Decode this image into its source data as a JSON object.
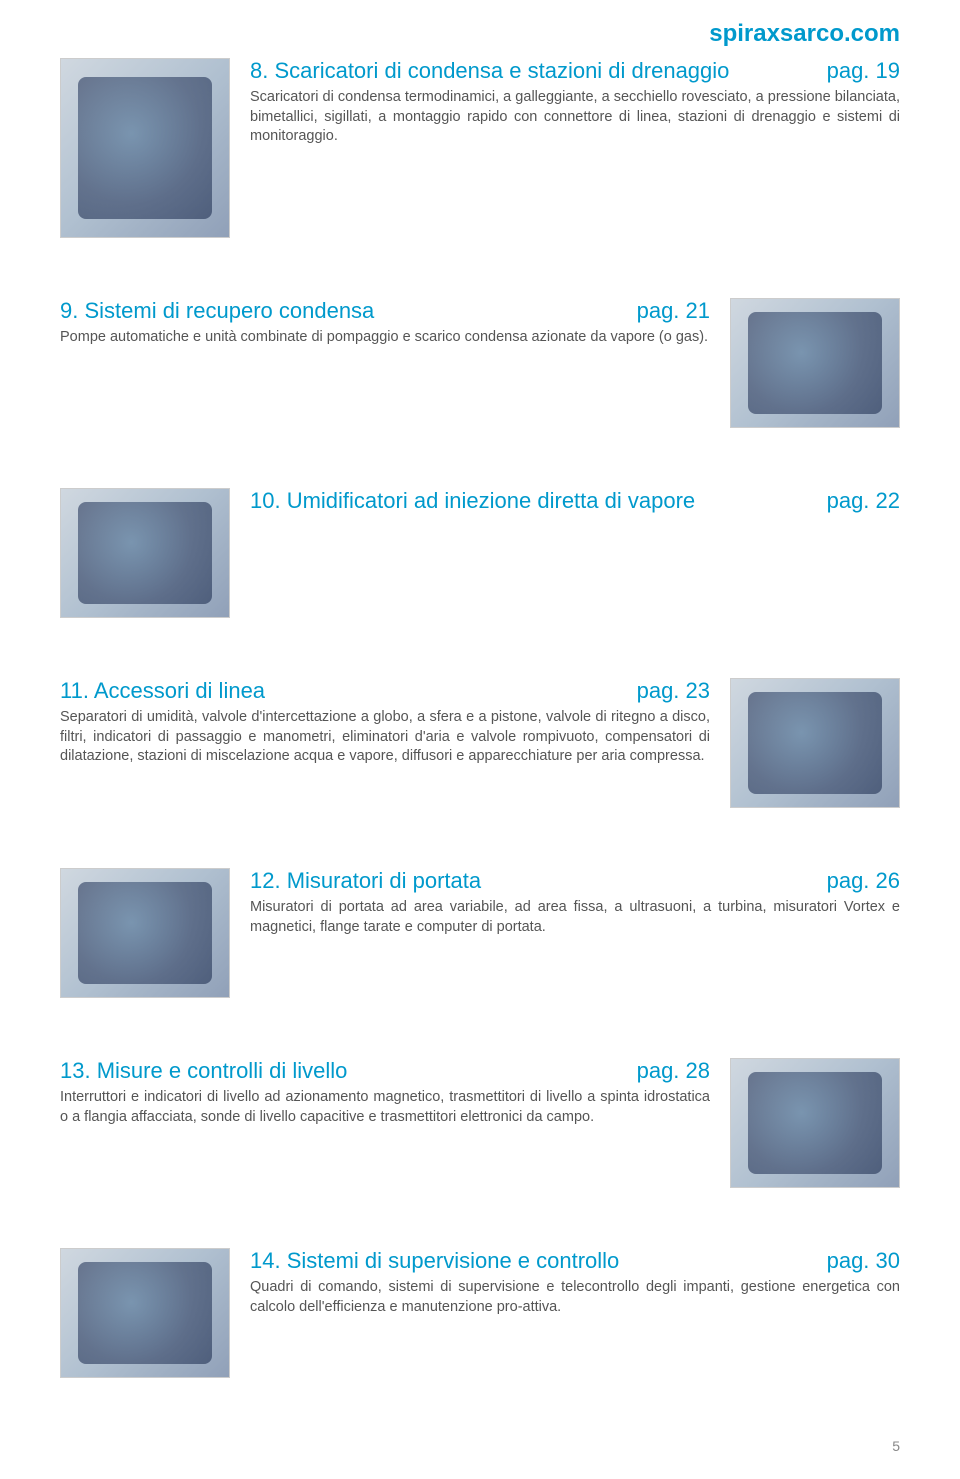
{
  "header": {
    "site": "spiraxsarco.com"
  },
  "sections": [
    {
      "num": "8.",
      "title": "Scaricatori di condensa e stazioni di drenaggio",
      "page": "pag. 19",
      "desc": "Scaricatori di condensa termodinamici, a galleggiante, a secchiello rovesciato, a pressione bilanciata, bimetallici, sigillati, a montaggio rapido con connettore di linea, stazioni di drenaggio e sistemi di monitoraggio.",
      "imageSide": "left"
    },
    {
      "num": "9.",
      "title": "Sistemi di recupero condensa",
      "page": "pag. 21",
      "desc": "Pompe automatiche e unità combinate di pompaggio e scarico condensa azionate da vapore (o gas).",
      "imageSide": "right"
    },
    {
      "num": "10.",
      "title": "Umidificatori ad iniezione diretta di vapore",
      "page": "pag. 22",
      "desc": "",
      "imageSide": "left"
    },
    {
      "num": "11.",
      "title": "Accessori di linea",
      "page": "pag. 23",
      "desc": "Separatori di umidità, valvole d'intercettazione a globo, a sfera e a pistone, valvole di ritegno a disco, filtri, indicatori di passaggio e manometri, eliminatori d'aria e valvole rompivuoto, compensatori di dilatazione, stazioni di miscelazione acqua e vapore, diffusori e apparecchiature per aria compressa.",
      "imageSide": "right"
    },
    {
      "num": "12.",
      "title": "Misuratori di portata",
      "page": "pag. 26",
      "desc": "Misuratori di portata ad area variabile, ad area fissa, a ultrasuoni, a turbina, misuratori Vortex e magnetici, flange tarate e computer di portata.",
      "imageSide": "left"
    },
    {
      "num": "13.",
      "title": "Misure e controlli di livello",
      "page": "pag. 28",
      "desc": "Interruttori e indicatori di livello ad azionamento magnetico, trasmettitori di livello a spinta idrostatica o a flangia affacciata, sonde di livello capacitive e trasmettitori elettronici da campo.",
      "imageSide": "right"
    },
    {
      "num": "14.",
      "title": "Sistemi di supervisione e controllo",
      "page": "pag. 30",
      "desc": "Quadri di comando, sistemi di supervisione e telecontrollo degli impanti, gestione energetica con calcolo dell'efficienza e manutenzione pro-attiva.",
      "imageSide": "left"
    }
  ],
  "footer": {
    "pageNumber": "5"
  },
  "colors": {
    "link": "#0099cc",
    "text": "#555555",
    "background": "#ffffff"
  }
}
